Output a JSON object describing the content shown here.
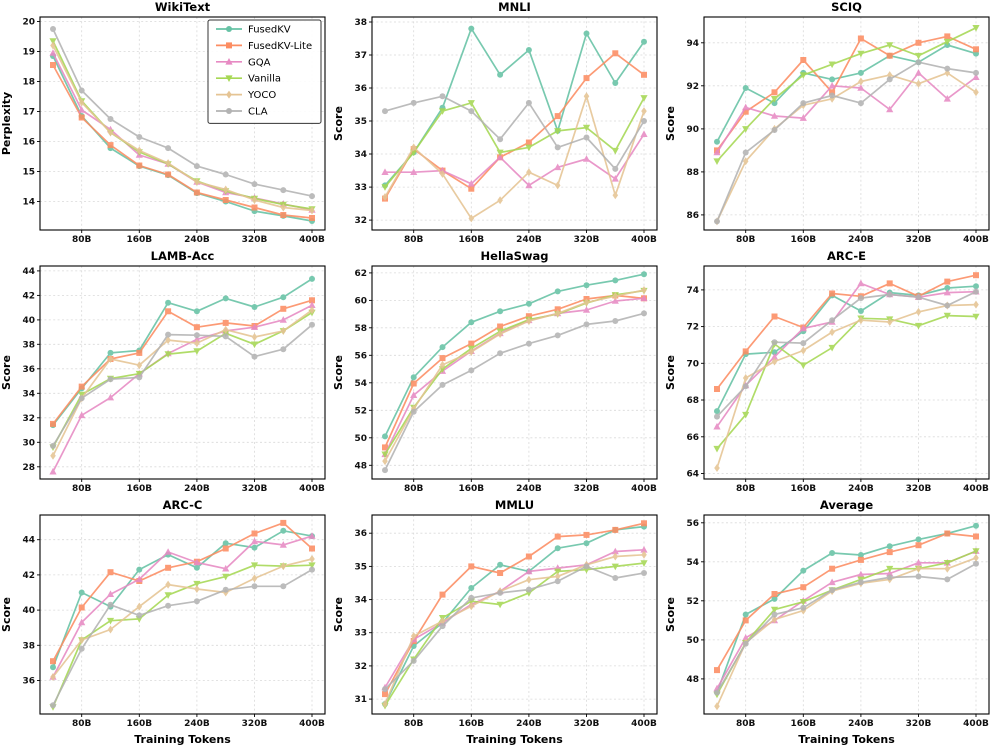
{
  "figure": {
    "background": "#ffffff",
    "xlabel": "Training Tokens",
    "ylabel_default": "Score",
    "x_unit_suffix": "B",
    "x_values": [
      40,
      80,
      120,
      160,
      200,
      240,
      280,
      320,
      360,
      400
    ],
    "x_ticks": [
      80,
      160,
      240,
      320,
      400
    ],
    "xlim": [
      22,
      418
    ],
    "grid": "dashed",
    "legend_location": "upper-right-of-first-subplot"
  },
  "series_meta": [
    {
      "name": "FusedKV",
      "color": "#66c2a5",
      "marker": "circle"
    },
    {
      "name": "FusedKV-Lite",
      "color": "#fc8d62",
      "marker": "square"
    },
    {
      "name": "GQA",
      "color": "#e78ac3",
      "marker": "triangle-up"
    },
    {
      "name": "Vanilla",
      "color": "#a6d854",
      "marker": "triangle-down"
    },
    {
      "name": "YOCO",
      "color": "#e5c494",
      "marker": "diamond"
    },
    {
      "name": "CLA",
      "color": "#b3b3b3",
      "marker": "circle"
    }
  ],
  "chart_data": [
    {
      "type": "line",
      "title": "WikiText",
      "ylabel": "Perplexity",
      "ylim": [
        13.05,
        20.15
      ],
      "yticks": [
        14,
        15,
        16,
        17,
        18,
        19,
        20
      ],
      "series": [
        {
          "name": "FusedKV",
          "values": [
            18.85,
            16.85,
            15.78,
            15.18,
            14.88,
            14.28,
            14.0,
            13.68,
            13.52,
            13.35
          ]
        },
        {
          "name": "FusedKV-Lite",
          "values": [
            18.55,
            16.8,
            15.88,
            15.2,
            14.9,
            14.3,
            14.05,
            13.8,
            13.55,
            13.45
          ]
        },
        {
          "name": "GQA",
          "values": [
            18.95,
            17.05,
            16.4,
            15.55,
            15.25,
            14.65,
            14.3,
            14.12,
            13.92,
            13.72
          ]
        },
        {
          "name": "Vanilla",
          "values": [
            19.35,
            17.35,
            16.3,
            15.65,
            15.25,
            14.68,
            14.35,
            14.1,
            13.9,
            13.75
          ]
        },
        {
          "name": "YOCO",
          "values": [
            19.2,
            17.3,
            16.3,
            15.7,
            15.28,
            14.65,
            14.4,
            14.05,
            13.8,
            13.7
          ]
        },
        {
          "name": "CLA",
          "values": [
            19.75,
            17.7,
            16.75,
            16.15,
            15.78,
            15.18,
            14.9,
            14.58,
            14.38,
            14.18
          ]
        }
      ]
    },
    {
      "type": "line",
      "title": "MNLI",
      "ylabel": "Score",
      "ylim": [
        31.7,
        38.15
      ],
      "yticks": [
        32,
        33,
        34,
        35,
        36,
        37,
        38
      ],
      "series": [
        {
          "name": "FusedKV",
          "values": [
            33.05,
            34.05,
            35.4,
            37.8,
            36.4,
            37.15,
            34.7,
            37.65,
            36.15,
            37.4
          ]
        },
        {
          "name": "FusedKV-Lite",
          "values": [
            32.65,
            34.15,
            33.5,
            32.95,
            33.9,
            34.35,
            35.15,
            36.3,
            37.05,
            36.4
          ]
        },
        {
          "name": "GQA",
          "values": [
            33.45,
            33.45,
            33.5,
            33.1,
            33.9,
            33.05,
            33.6,
            33.85,
            33.25,
            34.6
          ]
        },
        {
          "name": "Vanilla",
          "values": [
            33.0,
            34.05,
            35.3,
            35.55,
            34.05,
            34.2,
            34.7,
            34.8,
            34.1,
            35.7
          ]
        },
        {
          "name": "YOCO",
          "values": [
            32.7,
            34.2,
            33.4,
            32.05,
            32.6,
            33.45,
            33.05,
            35.75,
            32.75,
            35.3
          ]
        },
        {
          "name": "CLA",
          "values": [
            35.3,
            35.55,
            35.75,
            35.3,
            34.45,
            35.55,
            34.2,
            34.5,
            33.55,
            35.0
          ]
        }
      ]
    },
    {
      "type": "line",
      "title": "SCIQ",
      "ylabel": "Score",
      "ylim": [
        85.3,
        95.2
      ],
      "yticks": [
        86,
        88,
        90,
        92,
        94
      ],
      "series": [
        {
          "name": "FusedKV",
          "values": [
            89.4,
            91.9,
            91.2,
            92.6,
            92.3,
            92.6,
            93.4,
            93.1,
            93.9,
            93.5
          ]
        },
        {
          "name": "FusedKV-Lite",
          "values": [
            89.0,
            90.8,
            91.7,
            93.2,
            91.7,
            94.2,
            93.4,
            94.0,
            94.3,
            93.7
          ]
        },
        {
          "name": "GQA",
          "values": [
            88.9,
            91.0,
            90.6,
            90.5,
            92.0,
            91.9,
            90.9,
            92.6,
            91.4,
            92.4
          ]
        },
        {
          "name": "Vanilla",
          "values": [
            88.5,
            90.0,
            91.4,
            92.5,
            93.0,
            93.5,
            93.9,
            93.4,
            94.05,
            94.7
          ]
        },
        {
          "name": "YOCO",
          "values": [
            85.7,
            88.5,
            90.0,
            91.1,
            91.4,
            92.2,
            92.5,
            92.1,
            92.6,
            91.7
          ]
        },
        {
          "name": "CLA",
          "values": [
            85.7,
            88.9,
            89.95,
            91.2,
            91.55,
            91.2,
            92.3,
            93.1,
            92.8,
            92.6
          ]
        }
      ]
    },
    {
      "type": "line",
      "title": "LAMB-Acc",
      "ylabel": "Score",
      "ylim": [
        27.0,
        44.4
      ],
      "yticks": [
        28,
        30,
        32,
        34,
        36,
        38,
        40,
        42,
        44
      ],
      "series": [
        {
          "name": "FusedKV",
          "values": [
            31.4,
            34.4,
            37.3,
            37.5,
            41.4,
            40.7,
            41.75,
            41.05,
            41.85,
            43.35
          ]
        },
        {
          "name": "FusedKV-Lite",
          "values": [
            31.5,
            34.55,
            36.8,
            37.3,
            40.7,
            39.4,
            39.75,
            39.5,
            40.9,
            41.6
          ]
        },
        {
          "name": "GQA",
          "values": [
            27.6,
            32.2,
            33.65,
            35.6,
            37.25,
            38.4,
            39.1,
            39.4,
            40.0,
            41.2
          ]
        },
        {
          "name": "Vanilla",
          "values": [
            29.6,
            33.9,
            35.2,
            35.6,
            37.2,
            37.45,
            38.9,
            38.0,
            39.1,
            40.6
          ]
        },
        {
          "name": "YOCO",
          "values": [
            28.9,
            33.6,
            36.8,
            36.3,
            38.35,
            38.1,
            39.2,
            38.6,
            39.1,
            40.8
          ]
        },
        {
          "name": "CLA",
          "values": [
            29.7,
            33.6,
            35.15,
            35.3,
            38.8,
            38.75,
            38.65,
            37.0,
            37.6,
            39.6
          ]
        }
      ]
    },
    {
      "type": "line",
      "title": "HellaSwag",
      "ylabel": "Score",
      "ylim": [
        47.0,
        62.5
      ],
      "yticks": [
        48,
        50,
        52,
        54,
        56,
        58,
        60,
        62
      ],
      "series": [
        {
          "name": "FusedKV",
          "values": [
            50.1,
            54.4,
            56.6,
            58.4,
            59.2,
            59.75,
            60.65,
            61.1,
            61.45,
            61.9
          ]
        },
        {
          "name": "FusedKV-Lite",
          "values": [
            49.3,
            53.95,
            55.8,
            56.85,
            58.1,
            58.85,
            59.35,
            60.1,
            60.35,
            60.15
          ]
        },
        {
          "name": "GQA",
          "values": [
            48.8,
            53.1,
            54.85,
            56.3,
            57.6,
            58.55,
            59.05,
            59.3,
            59.95,
            60.15
          ]
        },
        {
          "name": "Vanilla",
          "values": [
            48.8,
            52.2,
            55.0,
            56.5,
            57.75,
            58.6,
            59.0,
            59.8,
            60.4,
            60.7
          ]
        },
        {
          "name": "YOCO",
          "values": [
            48.3,
            52.1,
            55.3,
            56.25,
            57.55,
            58.5,
            59.05,
            59.85,
            60.3,
            60.75
          ]
        },
        {
          "name": "CLA",
          "values": [
            47.65,
            51.9,
            53.85,
            54.9,
            56.15,
            56.85,
            57.45,
            58.25,
            58.5,
            59.05
          ]
        }
      ]
    },
    {
      "type": "line",
      "title": "ARC-E",
      "ylabel": "Score",
      "ylim": [
        63.7,
        75.3
      ],
      "yticks": [
        64,
        66,
        68,
        70,
        72,
        74
      ],
      "series": [
        {
          "name": "FusedKV",
          "values": [
            67.4,
            70.5,
            70.6,
            71.75,
            73.7,
            72.85,
            73.85,
            73.7,
            74.1,
            74.2
          ]
        },
        {
          "name": "FusedKV-Lite",
          "values": [
            68.6,
            70.65,
            72.55,
            71.95,
            73.8,
            73.65,
            74.35,
            73.65,
            74.45,
            74.8
          ]
        },
        {
          "name": "GQA",
          "values": [
            66.55,
            68.8,
            70.35,
            71.9,
            72.25,
            74.35,
            73.75,
            73.6,
            73.85,
            73.9
          ]
        },
        {
          "name": "Vanilla",
          "values": [
            65.35,
            67.2,
            71.05,
            69.9,
            70.85,
            72.45,
            72.4,
            72.05,
            72.6,
            72.55
          ]
        },
        {
          "name": "YOCO",
          "values": [
            64.3,
            69.2,
            70.1,
            70.7,
            71.7,
            72.35,
            72.25,
            72.8,
            73.15,
            73.2
          ]
        },
        {
          "name": "CLA",
          "values": [
            67.1,
            68.75,
            71.15,
            71.1,
            72.35,
            73.55,
            73.75,
            73.6,
            73.15,
            73.9
          ]
        }
      ]
    },
    {
      "type": "line",
      "title": "ARC-C",
      "ylabel": "Score",
      "ylim": [
        34.1,
        45.4
      ],
      "yticks": [
        36,
        38,
        40,
        42,
        44
      ],
      "series": [
        {
          "name": "FusedKV",
          "values": [
            36.75,
            41.0,
            40.2,
            42.3,
            43.15,
            42.4,
            43.8,
            43.55,
            44.5,
            44.2
          ]
        },
        {
          "name": "FusedKV-Lite",
          "values": [
            37.1,
            40.15,
            42.15,
            41.65,
            42.4,
            42.75,
            43.5,
            44.35,
            44.95,
            43.5
          ]
        },
        {
          "name": "GQA",
          "values": [
            36.2,
            39.3,
            40.9,
            41.75,
            43.3,
            42.7,
            42.35,
            43.9,
            43.7,
            44.2
          ]
        },
        {
          "name": "Vanilla",
          "values": [
            34.5,
            38.3,
            39.4,
            39.5,
            40.85,
            41.5,
            41.9,
            42.55,
            42.5,
            42.55
          ]
        },
        {
          "name": "YOCO",
          "values": [
            36.2,
            38.3,
            38.9,
            40.2,
            41.45,
            41.2,
            41.0,
            41.8,
            42.5,
            42.9
          ]
        },
        {
          "name": "CLA",
          "values": [
            34.6,
            37.8,
            40.3,
            39.7,
            40.25,
            40.5,
            41.15,
            41.35,
            41.35,
            42.3
          ]
        }
      ]
    },
    {
      "type": "line",
      "title": "MMLU",
      "ylabel": "Score",
      "ylim": [
        30.55,
        36.55
      ],
      "yticks": [
        31,
        32,
        33,
        34,
        35,
        36
      ],
      "series": [
        {
          "name": "FusedKV",
          "values": [
            30.85,
            32.6,
            33.3,
            34.35,
            35.05,
            34.85,
            35.55,
            35.7,
            36.1,
            36.2
          ]
        },
        {
          "name": "FusedKV-Lite",
          "values": [
            31.15,
            32.75,
            34.15,
            35.0,
            34.8,
            35.3,
            35.9,
            35.95,
            36.1,
            36.3
          ]
        },
        {
          "name": "GQA",
          "values": [
            31.35,
            32.8,
            33.3,
            33.85,
            34.25,
            34.85,
            34.95,
            35.05,
            35.45,
            35.5
          ]
        },
        {
          "name": "Vanilla",
          "values": [
            30.8,
            32.2,
            33.45,
            33.95,
            33.85,
            34.2,
            34.85,
            34.9,
            35.0,
            35.1
          ]
        },
        {
          "name": "YOCO",
          "values": [
            30.85,
            32.9,
            33.35,
            33.8,
            34.25,
            34.6,
            34.7,
            35.05,
            35.3,
            35.35
          ]
        },
        {
          "name": "CLA",
          "values": [
            31.3,
            32.15,
            33.2,
            34.05,
            34.2,
            34.3,
            34.55,
            35.0,
            34.65,
            34.8
          ]
        }
      ]
    },
    {
      "type": "line",
      "title": "Average",
      "ylabel": "Score",
      "ylim": [
        46.2,
        56.4
      ],
      "yticks": [
        48,
        50,
        52,
        54,
        56
      ],
      "series": [
        {
          "name": "FusedKV",
          "values": [
            47.3,
            51.3,
            52.1,
            53.55,
            54.45,
            54.35,
            54.8,
            55.15,
            55.45,
            55.85
          ]
        },
        {
          "name": "FusedKV-Lite",
          "values": [
            48.45,
            51.0,
            52.35,
            52.7,
            53.65,
            54.1,
            54.5,
            54.85,
            55.45,
            55.3
          ]
        },
        {
          "name": "GQA",
          "values": [
            47.5,
            50.1,
            51.0,
            52.0,
            52.95,
            53.35,
            53.4,
            53.95,
            53.95,
            54.55
          ]
        },
        {
          "name": "Vanilla",
          "values": [
            47.2,
            49.85,
            51.55,
            51.95,
            52.55,
            53.1,
            53.65,
            53.65,
            53.95,
            54.55
          ]
        },
        {
          "name": "YOCO",
          "values": [
            46.6,
            49.85,
            51.05,
            51.5,
            52.5,
            52.9,
            53.1,
            53.65,
            53.65,
            54.2
          ]
        },
        {
          "name": "CLA",
          "values": [
            47.3,
            49.8,
            51.3,
            51.65,
            52.55,
            52.95,
            53.2,
            53.25,
            53.1,
            53.9
          ]
        }
      ]
    }
  ]
}
